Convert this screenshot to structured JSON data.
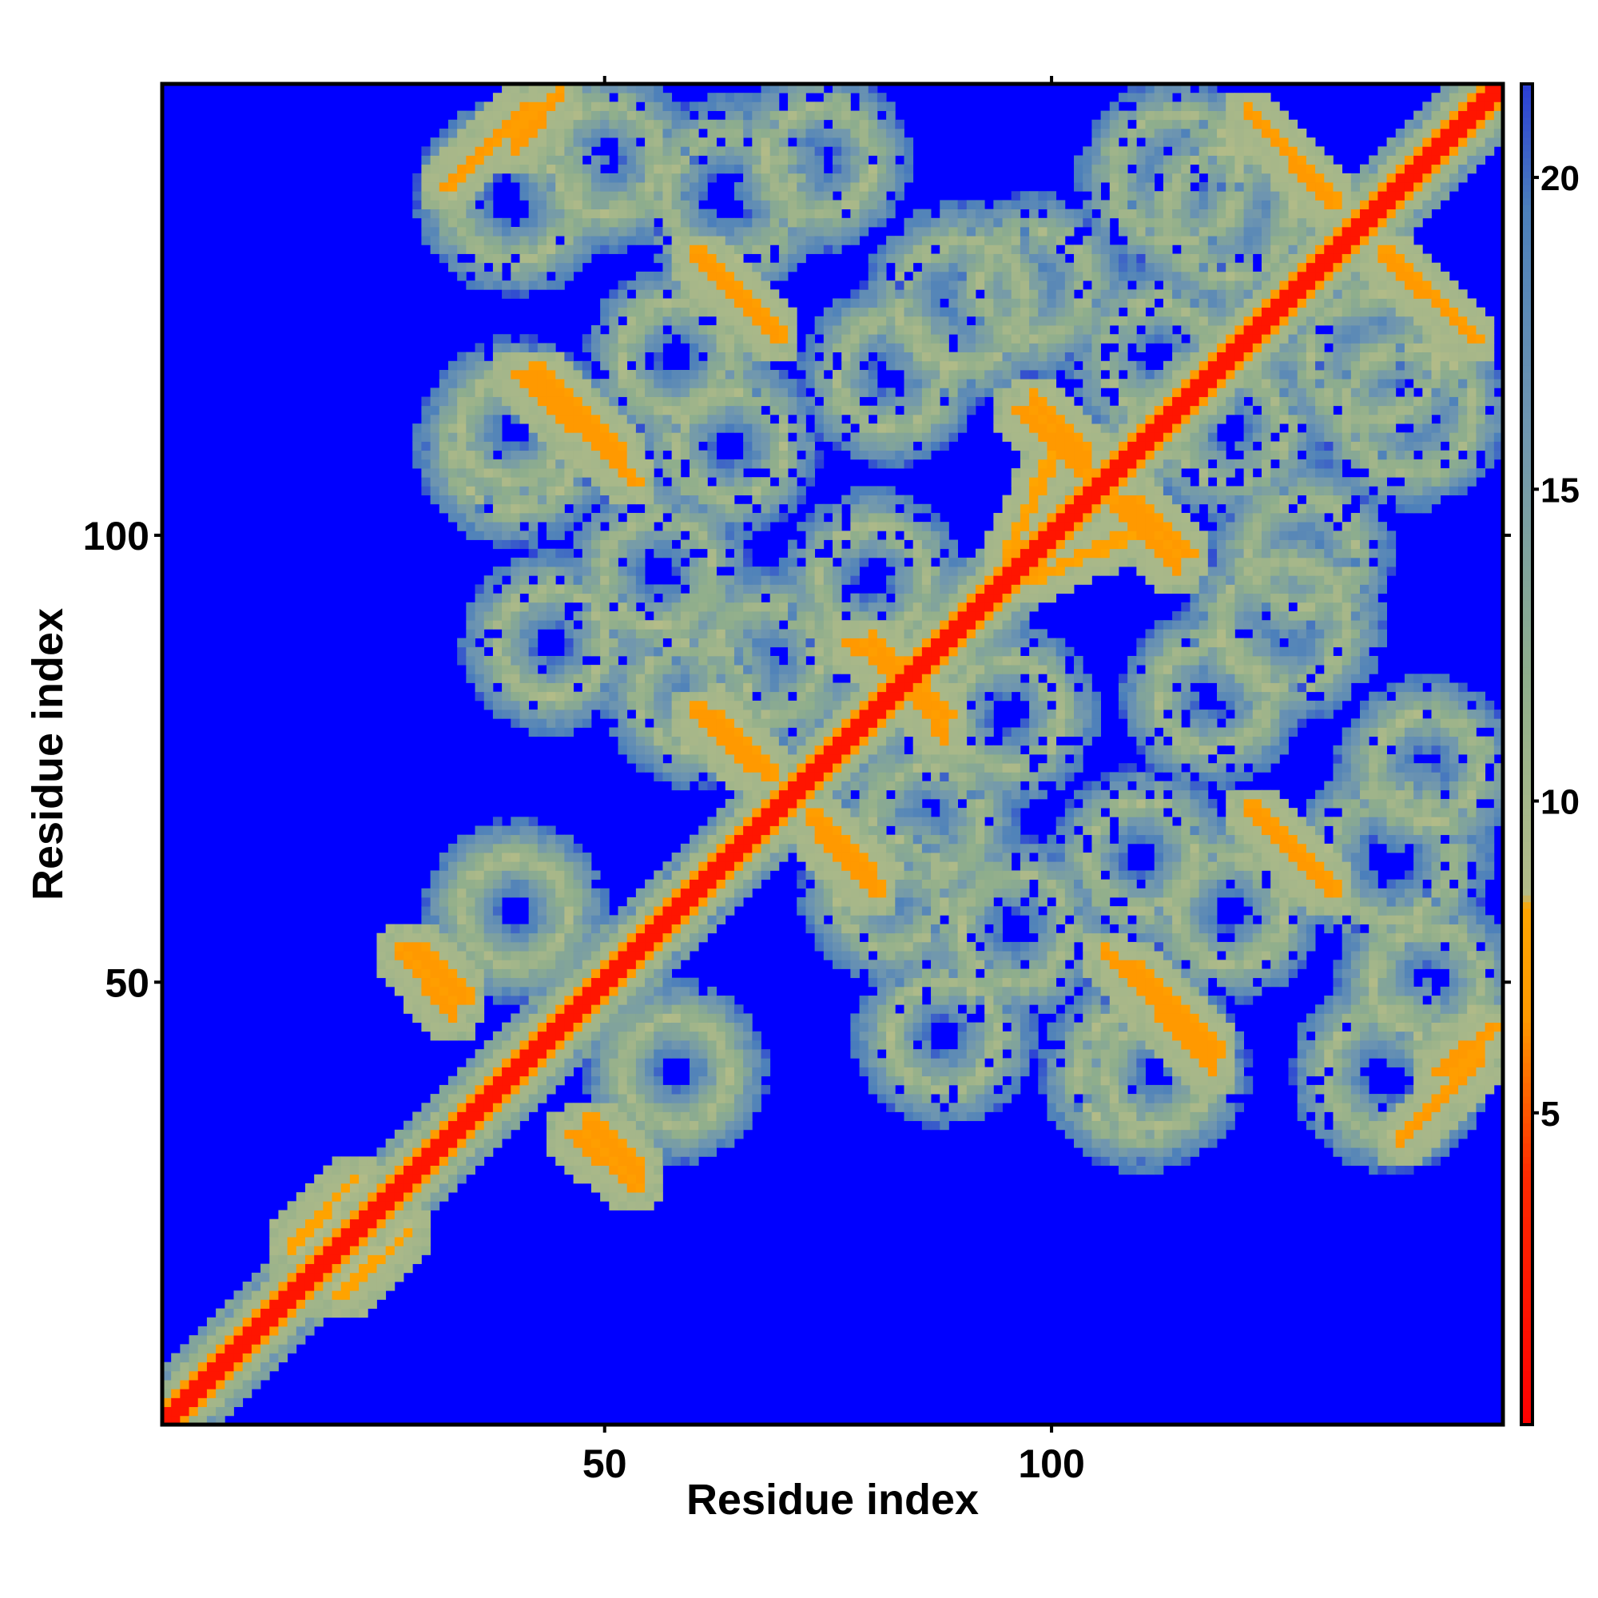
{
  "chart_data": {
    "type": "heatmap",
    "title": "",
    "xlabel": "Residue index",
    "ylabel": "Residue index",
    "xlim": [
      1,
      150
    ],
    "ylim": [
      1,
      150
    ],
    "x_ticks": [
      {
        "value": 50,
        "label": "50"
      },
      {
        "value": 100,
        "label": "100"
      }
    ],
    "y_ticks": [
      {
        "value": 50,
        "label": "50"
      },
      {
        "value": 100,
        "label": "100"
      }
    ],
    "colorbar": {
      "range": [
        0,
        21.5
      ],
      "ticks": [
        {
          "value": 5,
          "label": "5"
        },
        {
          "value": 10,
          "label": "10"
        },
        {
          "value": 15,
          "label": "15"
        },
        {
          "value": 20,
          "label": "20"
        }
      ],
      "colormap": [
        {
          "value": 0,
          "color": "#ff0000"
        },
        {
          "value": 4,
          "color": "#ff2a00"
        },
        {
          "value": 6.5,
          "color": "#ff9900"
        },
        {
          "value": 8.3,
          "color": "#ffa500"
        },
        {
          "value": 8.5,
          "color": "#b4bc88"
        },
        {
          "value": 12,
          "color": "#8fae8c"
        },
        {
          "value": 16,
          "color": "#6f96b0"
        },
        {
          "value": 19.5,
          "color": "#4b7fbb"
        },
        {
          "value": 21.5,
          "color": "#2b3fd6"
        }
      ]
    },
    "background_value": 25,
    "background_color": "#0000ff",
    "diagonal": {
      "from": 1,
      "to": 150,
      "value": 2,
      "halfwidth": 1.6
    },
    "anti_diagonal_features": [
      {
        "x1": 28,
        "y1": 54,
        "x2": 34,
        "y2": 48,
        "value": 6.5
      },
      {
        "x1": 46,
        "y1": 33,
        "x2": 53,
        "y2": 27,
        "value": 6.5
      },
      {
        "x1": 40,
        "y1": 118,
        "x2": 53,
        "y2": 106,
        "value": 6.5
      },
      {
        "x1": 32,
        "y1": 139,
        "x2": 41,
        "y2": 148,
        "value": 6.5
      },
      {
        "x1": 60,
        "y1": 131,
        "x2": 69,
        "y2": 122,
        "value": 6.5
      },
      {
        "x1": 61,
        "y1": 80,
        "x2": 68,
        "y2": 73,
        "value": 6.5
      },
      {
        "x1": 74,
        "y1": 66,
        "x2": 80,
        "y2": 60,
        "value": 6.5
      },
      {
        "x1": 77,
        "y1": 88,
        "x2": 88,
        "y2": 80,
        "value": 6.5
      },
      {
        "x1": 96,
        "y1": 114,
        "x2": 103,
        "y2": 107,
        "value": 6.5
      },
      {
        "x1": 108,
        "y1": 104,
        "x2": 115,
        "y2": 98,
        "value": 6.5
      },
      {
        "x1": 97,
        "y1": 95,
        "x2": 108,
        "y2": 100,
        "value": 7.5
      },
      {
        "x1": 108,
        "y1": 52,
        "x2": 118,
        "y2": 42,
        "value": 6.5
      },
      {
        "x1": 122,
        "y1": 147,
        "x2": 131,
        "y2": 137,
        "value": 6.5
      },
      {
        "x1": 137,
        "y1": 131,
        "x2": 147,
        "y2": 122,
        "value": 6.5
      },
      {
        "x1": 124,
        "y1": 68,
        "x2": 131,
        "y2": 60,
        "value": 6.5
      },
      {
        "x1": 143,
        "y1": 40,
        "x2": 149,
        "y2": 45,
        "value": 6.5
      },
      {
        "x1": 15,
        "y1": 20,
        "x2": 22,
        "y2": 28,
        "value": 8
      }
    ],
    "halo_rings": [
      {
        "x": 40,
        "y": 138,
        "r": 7
      },
      {
        "x": 64,
        "y": 138,
        "r": 7
      },
      {
        "x": 40,
        "y": 110,
        "r": 7
      },
      {
        "x": 64,
        "y": 110,
        "r": 6
      },
      {
        "x": 90,
        "y": 126,
        "r": 7
      },
      {
        "x": 120,
        "y": 136,
        "r": 7
      },
      {
        "x": 140,
        "y": 114,
        "r": 7
      },
      {
        "x": 68,
        "y": 86,
        "r": 6
      },
      {
        "x": 95,
        "y": 80,
        "r": 6
      },
      {
        "x": 40,
        "y": 58,
        "r": 6
      },
      {
        "x": 58,
        "y": 40,
        "r": 6
      },
      {
        "x": 82,
        "y": 60,
        "r": 6
      },
      {
        "x": 88,
        "y": 44,
        "r": 6
      },
      {
        "x": 112,
        "y": 40,
        "r": 6
      },
      {
        "x": 120,
        "y": 58,
        "r": 6
      },
      {
        "x": 142,
        "y": 50,
        "r": 6
      },
      {
        "x": 142,
        "y": 74,
        "r": 6
      },
      {
        "x": 118,
        "y": 82,
        "r": 6
      },
      {
        "x": 128,
        "y": 98,
        "r": 6
      },
      {
        "x": 56,
        "y": 96,
        "r": 6
      },
      {
        "x": 112,
        "y": 120,
        "r": 6
      }
    ]
  }
}
